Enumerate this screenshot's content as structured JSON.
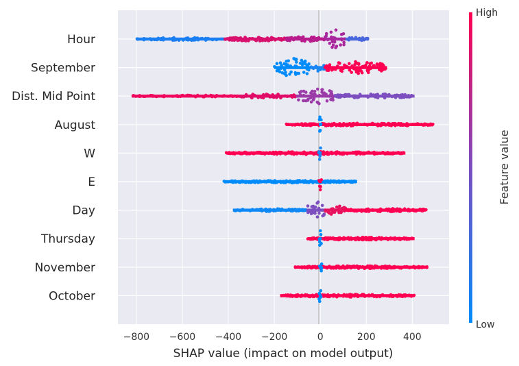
{
  "chart_data": {
    "type": "scatter",
    "subtype": "shap-beeswarm",
    "title": "",
    "xlabel": "SHAP value (impact on model output)",
    "ylabel": "",
    "xlim": [
      -880,
      560
    ],
    "xticks": [
      -800,
      -600,
      -400,
      -200,
      0,
      200,
      400
    ],
    "xtick_labels": [
      "−800",
      "−600",
      "−400",
      "−200",
      "0",
      "200",
      "400"
    ],
    "background_color": "#eaeaf2",
    "grid": true,
    "colors": {
      "low": "#008bfb",
      "high": "#ff0052"
    },
    "colorbar": {
      "label": "Feature value",
      "high_label": "High",
      "low_label": "Low"
    },
    "features": [
      {
        "name": "Hour",
        "segments": [
          {
            "from": -800,
            "to": -420,
            "color": "#1a7ff2",
            "spread": 0.12,
            "density": 0.6
          },
          {
            "from": -420,
            "to": -150,
            "color": "#d8106e",
            "spread": 0.18,
            "density": 0.9
          },
          {
            "from": -150,
            "to": 20,
            "color": "#b81c8c",
            "spread": 0.22,
            "density": 1.0
          },
          {
            "from": 20,
            "to": 110,
            "color": "#a9279c",
            "spread": 0.85,
            "density": 1.0
          },
          {
            "from": 110,
            "to": 210,
            "color": "#4a68dd",
            "spread": 0.15,
            "density": 0.7
          }
        ]
      },
      {
        "name": "September",
        "segments": [
          {
            "from": -200,
            "to": -40,
            "color": "#008bfb",
            "spread": 0.8,
            "density": 1.0
          },
          {
            "from": -40,
            "to": 20,
            "color": "#1a86f3",
            "spread": 0.3,
            "density": 0.8
          },
          {
            "from": 20,
            "to": 290,
            "color": "#ff0052",
            "spread": 0.55,
            "density": 1.0
          }
        ]
      },
      {
        "name": "Dist. Mid Point",
        "segments": [
          {
            "from": -820,
            "to": -350,
            "color": "#f0085c",
            "spread": 0.08,
            "density": 0.5
          },
          {
            "from": -350,
            "to": -100,
            "color": "#e00c68",
            "spread": 0.2,
            "density": 0.8
          },
          {
            "from": -100,
            "to": 60,
            "color": "#9a3ba8",
            "spread": 0.75,
            "density": 1.0
          },
          {
            "from": 60,
            "to": 410,
            "color": "#7c4ec0",
            "spread": 0.18,
            "density": 0.8
          }
        ]
      },
      {
        "name": "August",
        "segments": [
          {
            "from": -150,
            "to": 490,
            "color": "#ff0052",
            "spread": 0.12,
            "density": 0.9
          },
          {
            "from": -6,
            "to": 6,
            "color": "#008bfb",
            "spread": 0.75,
            "density": 1.0
          }
        ]
      },
      {
        "name": "W",
        "segments": [
          {
            "from": -410,
            "to": 370,
            "color": "#ff0052",
            "spread": 0.12,
            "density": 0.9
          },
          {
            "from": -6,
            "to": 6,
            "color": "#1d86f3",
            "spread": 0.75,
            "density": 1.0
          }
        ]
      },
      {
        "name": "E",
        "segments": [
          {
            "from": -420,
            "to": 160,
            "color": "#008bfb",
            "spread": 0.1,
            "density": 0.9
          },
          {
            "from": -6,
            "to": 6,
            "color": "#ff0052",
            "spread": 0.75,
            "density": 1.0
          }
        ]
      },
      {
        "name": "Day",
        "segments": [
          {
            "from": -380,
            "to": -60,
            "color": "#0e88f7",
            "spread": 0.12,
            "density": 0.8
          },
          {
            "from": -60,
            "to": 20,
            "color": "#7c4ec0",
            "spread": 0.8,
            "density": 1.0
          },
          {
            "from": 20,
            "to": 110,
            "color": "#e8135f",
            "spread": 0.45,
            "density": 1.0
          },
          {
            "from": 110,
            "to": 460,
            "color": "#ff0052",
            "spread": 0.14,
            "density": 0.9
          }
        ]
      },
      {
        "name": "Thursday",
        "segments": [
          {
            "from": -55,
            "to": 410,
            "color": "#ff0052",
            "spread": 0.12,
            "density": 0.9
          },
          {
            "from": -6,
            "to": 6,
            "color": "#008bfb",
            "spread": 0.75,
            "density": 1.0
          }
        ]
      },
      {
        "name": "November",
        "segments": [
          {
            "from": -110,
            "to": 465,
            "color": "#ff0052",
            "spread": 0.12,
            "density": 0.9
          },
          {
            "from": -6,
            "to": 6,
            "color": "#008bfb",
            "spread": 0.75,
            "density": 1.0
          }
        ]
      },
      {
        "name": "October",
        "segments": [
          {
            "from": -175,
            "to": 410,
            "color": "#ff0052",
            "spread": 0.12,
            "density": 0.9
          },
          {
            "from": -6,
            "to": 6,
            "color": "#008bfb",
            "spread": 0.75,
            "density": 1.0
          }
        ]
      }
    ]
  }
}
